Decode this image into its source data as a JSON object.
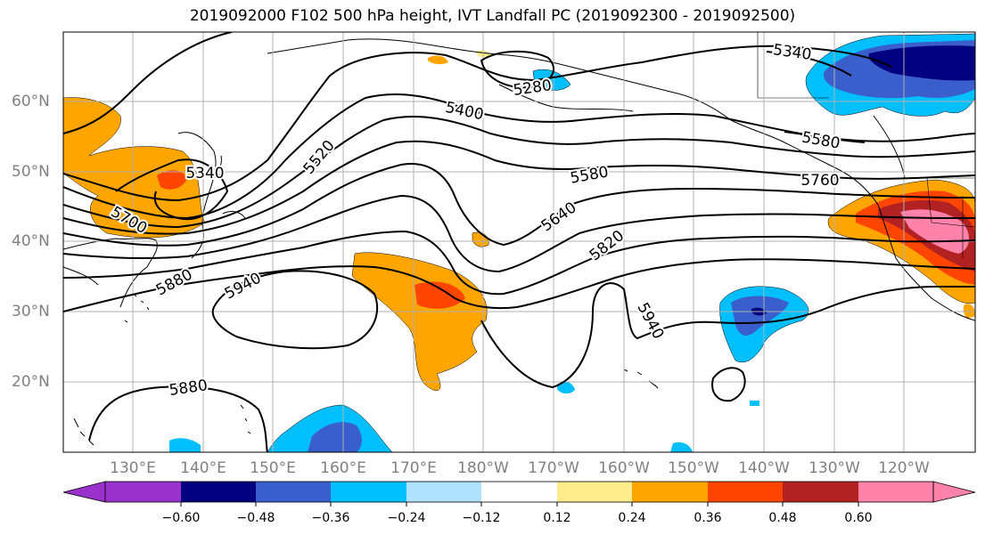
{
  "title": "2019092000 F102 500 hPa height, IVT Landfall PC (2019092300 - 2019092500)",
  "map": {
    "lat_labels": [
      "60°N",
      "50°N",
      "40°N",
      "30°N",
      "20°N"
    ],
    "lon_labels": [
      "130°E",
      "140°E",
      "150°E",
      "160°E",
      "170°E",
      "180°W",
      "170°W",
      "160°W",
      "150°W",
      "140°W",
      "130°W",
      "120°W"
    ],
    "contour_labels": [
      "5340",
      "5280",
      "5400",
      "5520",
      "5340",
      "5700",
      "5880",
      "5940",
      "5880",
      "5580",
      "5640",
      "5820",
      "5940",
      "5760",
      "5580"
    ]
  },
  "colorbar": {
    "ticks": [
      "−0.60",
      "−0.48",
      "−0.36",
      "−0.24",
      "−0.12",
      "0.12",
      "0.24",
      "0.36",
      "0.48",
      "0.60"
    ],
    "colors": [
      "#9932cc",
      "#000080",
      "#3a5fcd",
      "#00bfff",
      "#b0e2ff",
      "#ffffff",
      "#ffec8b",
      "#ffa500",
      "#ff4500",
      "#b22222",
      "#ff82ab"
    ]
  }
}
